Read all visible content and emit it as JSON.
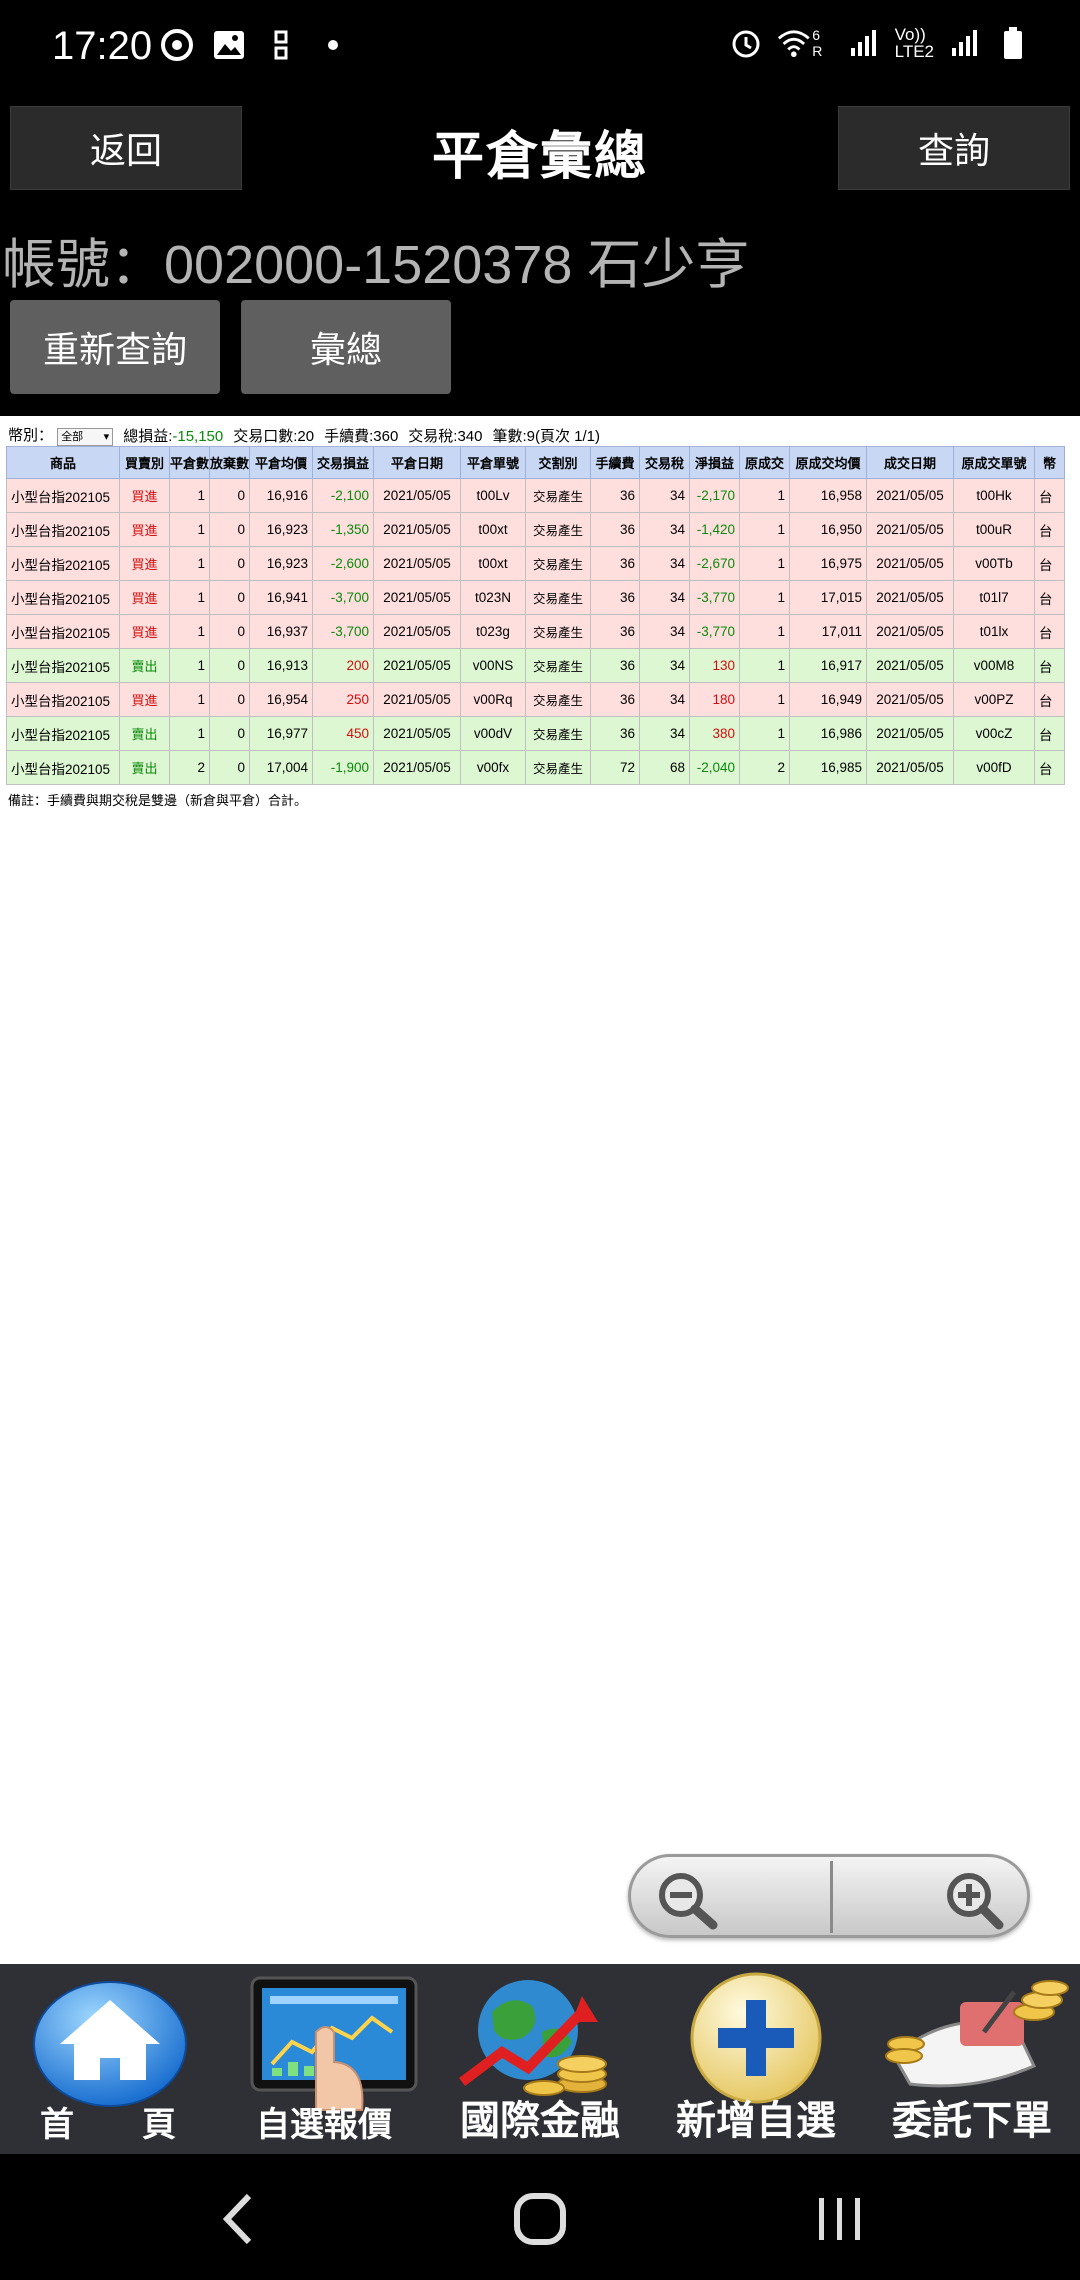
{
  "status_bar": {
    "time": "17:20",
    "left_icons": [
      "chrome-icon",
      "image-icon",
      "link-icon",
      "dot-icon"
    ],
    "right_icons": [
      "alarm-icon",
      "wifi-icon",
      "signal-icon",
      "volte-icon",
      "signal-icon",
      "battery-icon"
    ],
    "network_label": "LTE2",
    "volte_label": "Vo))",
    "wifi_label": "6 R"
  },
  "header": {
    "back_label": "返回",
    "title": "平倉彙總",
    "query_label": "查詢",
    "account": "帳號：002000-1520378 石少亨",
    "requery_label": "重新查詢",
    "summary_label": "彙總"
  },
  "summary": {
    "currency_label": "幣別：",
    "currency_value": "全部",
    "total_pnl_label": "總損益:",
    "total_pnl_value": "-15,150",
    "volume": "交易口數:20",
    "fee": "手續費:360",
    "tax": "交易稅:340",
    "count": "筆數:9(頁次 1/1)"
  },
  "table": {
    "columns": [
      "商品",
      "買賣別",
      "平倉數",
      "放棄數",
      "平倉均價",
      "交易損益",
      "平倉日期",
      "平倉單號",
      "交割別",
      "手續費",
      "交易稅",
      "淨損益",
      "原成交",
      "原成交均價",
      "成交日期",
      "原成交單號",
      "幣"
    ],
    "rows": [
      {
        "side": "buy",
        "cells": [
          "小型台指202105",
          "買進",
          "1",
          "0",
          "16,916",
          "-2,100",
          "2021/05/05",
          "t00Lv",
          "交易產生",
          "36",
          "34",
          "-2,170",
          "1",
          "16,958",
          "2021/05/05",
          "t00Hk",
          "台"
        ]
      },
      {
        "side": "buy",
        "cells": [
          "小型台指202105",
          "買進",
          "1",
          "0",
          "16,923",
          "-1,350",
          "2021/05/05",
          "t00xt",
          "交易產生",
          "36",
          "34",
          "-1,420",
          "1",
          "16,950",
          "2021/05/05",
          "t00uR",
          "台"
        ]
      },
      {
        "side": "buy",
        "cells": [
          "小型台指202105",
          "買進",
          "1",
          "0",
          "16,923",
          "-2,600",
          "2021/05/05",
          "t00xt",
          "交易產生",
          "36",
          "34",
          "-2,670",
          "1",
          "16,975",
          "2021/05/05",
          "v00Tb",
          "台"
        ]
      },
      {
        "side": "buy",
        "cells": [
          "小型台指202105",
          "買進",
          "1",
          "0",
          "16,941",
          "-3,700",
          "2021/05/05",
          "t023N",
          "交易產生",
          "36",
          "34",
          "-3,770",
          "1",
          "17,015",
          "2021/05/05",
          "t01l7",
          "台"
        ]
      },
      {
        "side": "buy",
        "cells": [
          "小型台指202105",
          "買進",
          "1",
          "0",
          "16,937",
          "-3,700",
          "2021/05/05",
          "t023g",
          "交易產生",
          "36",
          "34",
          "-3,770",
          "1",
          "17,011",
          "2021/05/05",
          "t01lx",
          "台"
        ]
      },
      {
        "side": "sell",
        "cells": [
          "小型台指202105",
          "賣出",
          "1",
          "0",
          "16,913",
          "200",
          "2021/05/05",
          "v00NS",
          "交易產生",
          "36",
          "34",
          "130",
          "1",
          "16,917",
          "2021/05/05",
          "v00M8",
          "台"
        ]
      },
      {
        "side": "buy",
        "cells": [
          "小型台指202105",
          "買進",
          "1",
          "0",
          "16,954",
          "250",
          "2021/05/05",
          "v00Rq",
          "交易產生",
          "36",
          "34",
          "180",
          "1",
          "16,949",
          "2021/05/05",
          "v00PZ",
          "台"
        ]
      },
      {
        "side": "sell",
        "cells": [
          "小型台指202105",
          "賣出",
          "1",
          "0",
          "16,977",
          "450",
          "2021/05/05",
          "v00dV",
          "交易產生",
          "36",
          "34",
          "380",
          "1",
          "16,986",
          "2021/05/05",
          "v00cZ",
          "台"
        ]
      },
      {
        "side": "sell",
        "cells": [
          "小型台指202105",
          "賣出",
          "2",
          "0",
          "17,004",
          "-1,900",
          "2021/05/05",
          "v00fx",
          "交易產生",
          "72",
          "68",
          "-2,040",
          "2",
          "16,985",
          "2021/05/05",
          "v00fD",
          "台"
        ]
      }
    ],
    "note": "備註：手續費與期交稅是雙邊（新倉與平倉）合計。"
  },
  "zoom": {
    "out_icon": "zoom-out-icon",
    "in_icon": "zoom-in-icon"
  },
  "toolbar": {
    "items": [
      {
        "label": "首　　頁",
        "icon": "home-icon"
      },
      {
        "label": "自選報價",
        "icon": "tablet-quote-icon"
      },
      {
        "label": "國際金融",
        "icon": "globe-finance-icon"
      },
      {
        "label": "新增自選",
        "icon": "add-plus-icon"
      },
      {
        "label": "委託下單",
        "icon": "order-coins-icon"
      }
    ]
  },
  "navbar": {
    "icons": [
      "back-nav-icon",
      "home-nav-icon",
      "recents-nav-icon"
    ]
  },
  "colors": {
    "buy_row": "#ffdede",
    "sell_row": "#ddf7d2",
    "header_row": "#c8d8f4",
    "loss": "#0a8a0a",
    "gain": "#d01010",
    "toolbar_bg": "#2e3035"
  }
}
